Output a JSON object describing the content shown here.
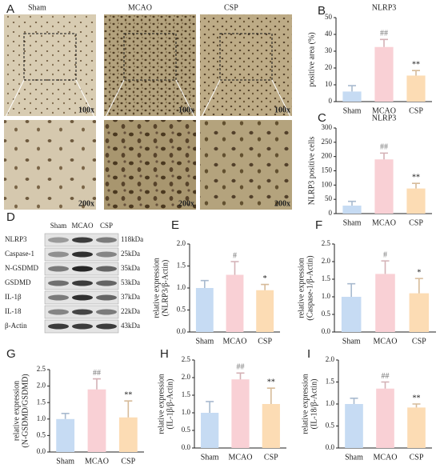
{
  "histology": {
    "panel": "A",
    "columns": [
      "Sham",
      "MCAO",
      "CSP"
    ],
    "magnifications": [
      "100x",
      "200x"
    ]
  },
  "western_blot": {
    "panel": "D",
    "lanes": [
      "Sham",
      "MCAO",
      "CSP"
    ],
    "rows": [
      {
        "protein": "NLRP3",
        "size": "118kDa"
      },
      {
        "protein": "Caspase-1",
        "size": "25kDa"
      },
      {
        "protein": "N-GSDMD",
        "size": "35kDa"
      },
      {
        "protein": "GSDMD",
        "size": "53kDa"
      },
      {
        "protein": "IL-1β",
        "size": "37kDa"
      },
      {
        "protein": "IL-18",
        "size": "22kDa"
      },
      {
        "protein": "β-Actin",
        "size": "43kDa"
      }
    ]
  },
  "chart_data": [
    {
      "type": "bar",
      "panel": "B",
      "title": "NLRP3",
      "ylabel": [
        "positive area (%)"
      ],
      "categories": [
        "Sham",
        "MCAO",
        "CSP"
      ],
      "values": [
        6,
        32.5,
        15.5
      ],
      "errors": [
        3.5,
        4.5,
        3
      ],
      "annotations": [
        null,
        "##",
        "**"
      ],
      "colors": [
        "#c6dbf3",
        "#f9d0d5",
        "#fcdcb4"
      ],
      "ylim": [
        0,
        50
      ],
      "yticks": [
        0,
        10,
        20,
        30,
        40,
        50
      ]
    },
    {
      "type": "bar",
      "panel": "C",
      "title": "NLRP3",
      "ylabel": [
        "NLRP3 positive cells"
      ],
      "categories": [
        "Sham",
        "MCAO",
        "CSP"
      ],
      "values": [
        28,
        190,
        88
      ],
      "errors": [
        15,
        22,
        18
      ],
      "annotations": [
        null,
        "##",
        "**"
      ],
      "colors": [
        "#c6dbf3",
        "#f9d0d5",
        "#fcdcb4"
      ],
      "ylim": [
        0,
        300
      ],
      "yticks": [
        0,
        50,
        100,
        150,
        200,
        250,
        300
      ]
    },
    {
      "type": "bar",
      "panel": "E",
      "ylabel": [
        "relative expression",
        "(NLRP3/β-Actin)"
      ],
      "categories": [
        "Sham",
        "MCAO",
        "CSP"
      ],
      "values": [
        1.0,
        1.3,
        0.95
      ],
      "errors": [
        0.17,
        0.3,
        0.13
      ],
      "annotations": [
        null,
        "#",
        "*"
      ],
      "colors": [
        "#c6dbf3",
        "#f9d0d5",
        "#fcdcb4"
      ],
      "ylim": [
        0,
        2
      ],
      "yticks": [
        {
          "value": 0,
          "label": "0.0"
        },
        0.5,
        {
          "value": 1,
          "label": "1.0"
        },
        1.5,
        {
          "value": 2,
          "label": "2.0"
        }
      ]
    },
    {
      "type": "bar",
      "panel": "F",
      "ylabel": [
        "relative expression",
        "(Caspase-1/β-Actin)"
      ],
      "categories": [
        "Sham",
        "MCAO",
        "CSP"
      ],
      "values": [
        1.0,
        1.65,
        1.1
      ],
      "errors": [
        0.37,
        0.37,
        0.42
      ],
      "annotations": [
        null,
        "#",
        "*"
      ],
      "colors": [
        "#c6dbf3",
        "#f9d0d5",
        "#fcdcb4"
      ],
      "ylim": [
        0,
        2.5
      ],
      "yticks": [
        {
          "value": 0,
          "label": "0.0"
        },
        0.5,
        {
          "value": 1,
          "label": "1.0"
        },
        1.5,
        {
          "value": 2,
          "label": "2.0"
        },
        2.5
      ]
    },
    {
      "type": "bar",
      "panel": "G",
      "ylabel": [
        "relative expression",
        "(N-GSDMD/GSDMD)"
      ],
      "categories": [
        "Sham",
        "MCAO",
        "CSP"
      ],
      "values": [
        1.0,
        1.9,
        1.05
      ],
      "errors": [
        0.17,
        0.32,
        0.5
      ],
      "annotations": [
        null,
        "##",
        "**"
      ],
      "colors": [
        "#c6dbf3",
        "#f9d0d5",
        "#fcdcb4"
      ],
      "ylim": [
        0,
        2.5
      ],
      "yticks": [
        {
          "value": 0,
          "label": "0.0"
        },
        0.5,
        {
          "value": 1,
          "label": "1.0"
        },
        1.5,
        {
          "value": 2,
          "label": "2.0"
        },
        2.5
      ]
    },
    {
      "type": "bar",
      "panel": "H",
      "ylabel": [
        "relative expression",
        "(IL-1β/β-Actin)"
      ],
      "categories": [
        "Sham",
        "MCAO",
        "CSP"
      ],
      "values": [
        1.0,
        1.95,
        1.25
      ],
      "errors": [
        0.32,
        0.18,
        0.45
      ],
      "annotations": [
        null,
        "##",
        "**"
      ],
      "colors": [
        "#c6dbf3",
        "#f9d0d5",
        "#fcdcb4"
      ],
      "ylim": [
        0,
        2.5
      ],
      "yticks": [
        {
          "value": 0,
          "label": "0.0"
        },
        0.5,
        {
          "value": 1,
          "label": "1.0"
        },
        1.5,
        {
          "value": 2,
          "label": "2.0"
        },
        2.5
      ]
    },
    {
      "type": "bar",
      "panel": "I",
      "ylabel": [
        "relative expression",
        "(IL-18/β-Actin)"
      ],
      "categories": [
        "Sham",
        "MCAO",
        "CSP"
      ],
      "values": [
        1.0,
        1.35,
        0.92
      ],
      "errors": [
        0.13,
        0.15,
        0.08
      ],
      "annotations": [
        null,
        "##",
        "**"
      ],
      "colors": [
        "#c6dbf3",
        "#f9d0d5",
        "#fcdcb4"
      ],
      "ylim": [
        0,
        2
      ],
      "yticks": [
        {
          "value": 0,
          "label": "0.0"
        },
        0.5,
        {
          "value": 1,
          "label": "1.0"
        },
        1.5,
        {
          "value": 2,
          "label": "2.0"
        }
      ]
    }
  ]
}
